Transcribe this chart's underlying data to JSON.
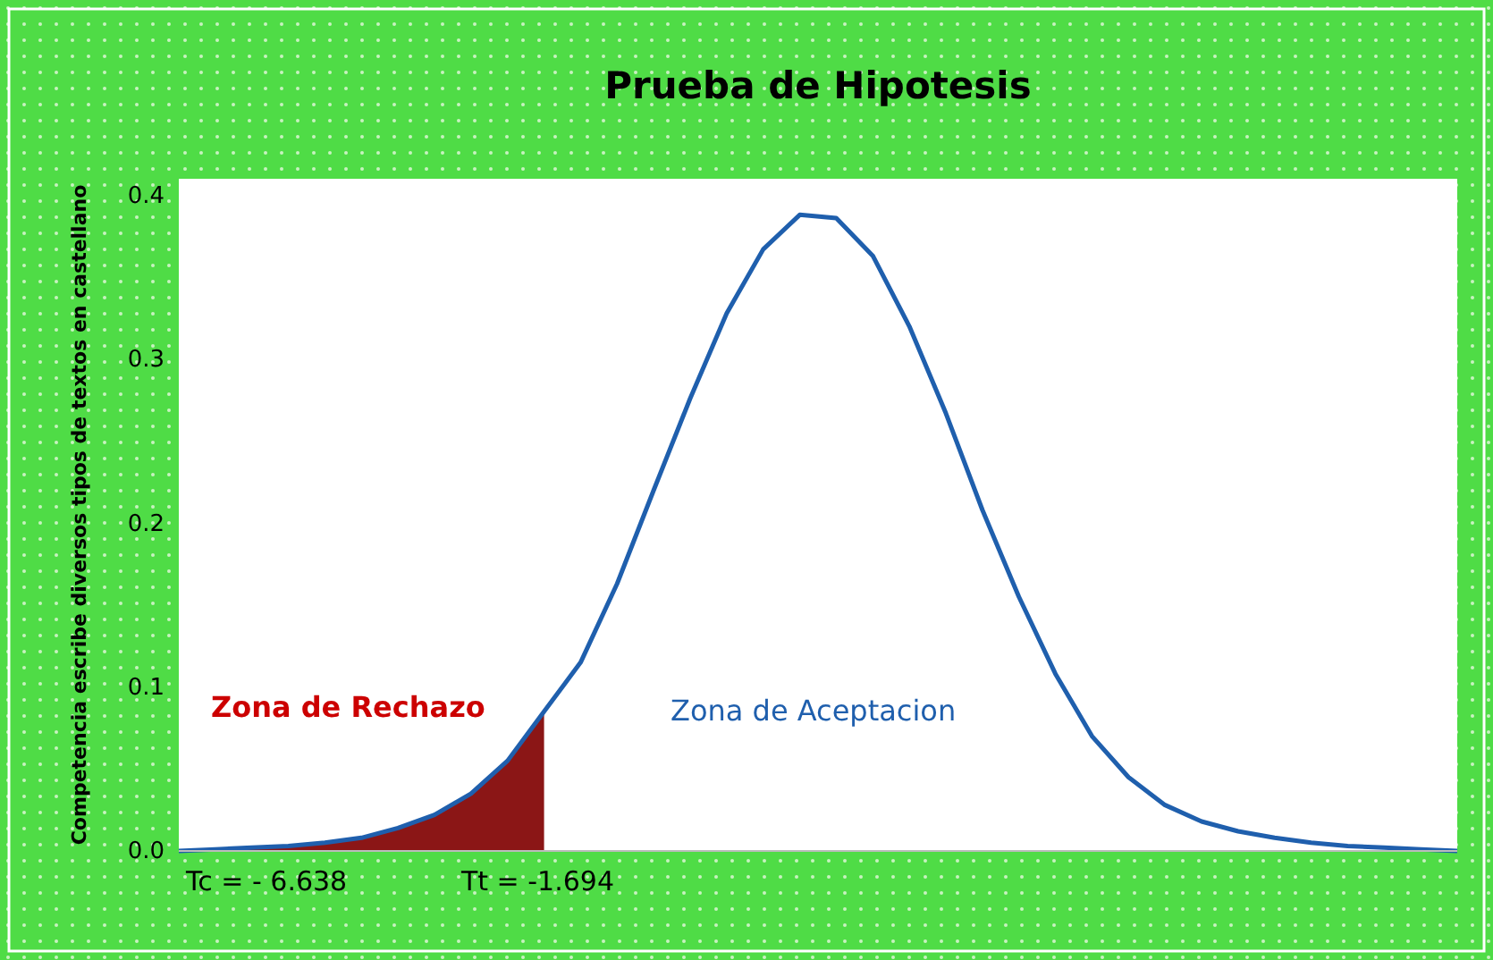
{
  "chart_data": {
    "type": "line",
    "title": "Prueba de Hipotesis",
    "ylabel": "Competencia escribe diversos tipos de textos en castellano",
    "categories": [
      null,
      null,
      null,
      null,
      null,
      null,
      null,
      null,
      null,
      null,
      null,
      null,
      null,
      null,
      null,
      null,
      null,
      null,
      null,
      null,
      null,
      null,
      null,
      null,
      null,
      null,
      null,
      null,
      null,
      null,
      null,
      null,
      null,
      null,
      null,
      null
    ],
    "series": [
      {
        "type": "area",
        "color": "#8b1616",
        "values": [
          0.0,
          0.001,
          0.002,
          0.003,
          0.005,
          0.008,
          0.014,
          0.022,
          0.035,
          0.055,
          0.085,
          null,
          null,
          null,
          null,
          null,
          null,
          null,
          null,
          null,
          null,
          null,
          null,
          null,
          null,
          null,
          null,
          null,
          null,
          null,
          null,
          null,
          null,
          null,
          null,
          null
        ]
      },
      {
        "color": "#1f5fad",
        "values": [
          0.0,
          0.001,
          0.002,
          0.003,
          0.005,
          0.008,
          0.014,
          0.022,
          0.035,
          0.055,
          0.085,
          0.115,
          0.163,
          0.22,
          0.276,
          0.328,
          0.367,
          0.388,
          0.386,
          0.363,
          0.32,
          0.267,
          0.208,
          0.155,
          0.108,
          0.07,
          0.045,
          0.028,
          0.018,
          0.012,
          0.008,
          0.005,
          0.003,
          0.002,
          0.001,
          0.0
        ]
      }
    ],
    "ylim": [
      0,
      0.41
    ],
    "yticks": [
      {
        "value": 0,
        "label": "0.0"
      },
      {
        "value": 0.1,
        "label": "0.1"
      },
      {
        "value": 0.2,
        "label": "0.2"
      },
      {
        "value": 0.3,
        "label": "0.3"
      },
      {
        "value": 0.4,
        "label": "0.4"
      }
    ],
    "grid": false,
    "line_style": "solid",
    "marker": "none",
    "annotations": [
      "Zona de Rechazo",
      "Zona de Aceptacion",
      "Tc = - 6.638",
      "Tt = -1.694"
    ]
  }
}
